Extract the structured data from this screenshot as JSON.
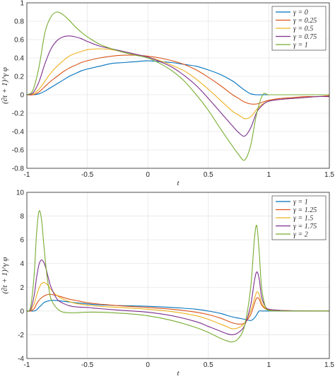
{
  "chart_data": [
    {
      "type": "line",
      "xlabel": "t",
      "ylabel": "(∂t + 1)^γ φ",
      "xlim": [
        -1,
        1.5
      ],
      "ylim": [
        -0.8,
        1
      ],
      "xticks": [
        "-1",
        "-0.5",
        "0",
        "0.5",
        "1",
        "1.5"
      ],
      "yticks": [
        "1",
        "0.8",
        "0.6",
        "0.4",
        "0.2",
        "0",
        "-0.2",
        "-0.4",
        "-0.6",
        "-0.8"
      ],
      "grid": true,
      "legend_position": "top-right",
      "x": [
        -1.0,
        -0.95,
        -0.9,
        -0.85,
        -0.8,
        -0.75,
        -0.7,
        -0.65,
        -0.6,
        -0.55,
        -0.5,
        -0.4,
        -0.3,
        -0.2,
        -0.1,
        0.0,
        0.1,
        0.2,
        0.3,
        0.4,
        0.5,
        0.6,
        0.7,
        0.75,
        0.8,
        0.85,
        0.9,
        0.95,
        1.0,
        1.1,
        1.2,
        1.3,
        1.4,
        1.5
      ],
      "series": [
        {
          "name": "γ = 0",
          "color": "#0072BD",
          "values": [
            0.0,
            0.0,
            0.01,
            0.04,
            0.08,
            0.12,
            0.16,
            0.2,
            0.23,
            0.26,
            0.28,
            0.31,
            0.34,
            0.35,
            0.36,
            0.37,
            0.36,
            0.35,
            0.33,
            0.31,
            0.27,
            0.22,
            0.15,
            0.1,
            0.05,
            0.01,
            0.0,
            0.0,
            0.0,
            0.0,
            0.0,
            0.0,
            0.0,
            0.0
          ]
        },
        {
          "name": "γ = 0.25",
          "color": "#D95319",
          "values": [
            0.0,
            0.0,
            0.03,
            0.09,
            0.15,
            0.2,
            0.25,
            0.29,
            0.32,
            0.35,
            0.37,
            0.4,
            0.42,
            0.43,
            0.43,
            0.42,
            0.4,
            0.37,
            0.33,
            0.27,
            0.19,
            0.1,
            0.0,
            -0.04,
            -0.08,
            -0.1,
            -0.1,
            -0.08,
            -0.06,
            -0.04,
            -0.03,
            -0.02,
            -0.02,
            -0.01
          ]
        },
        {
          "name": "γ = 0.5",
          "color": "#EDB120",
          "values": [
            0.0,
            0.01,
            0.06,
            0.15,
            0.24,
            0.31,
            0.37,
            0.42,
            0.45,
            0.47,
            0.49,
            0.5,
            0.49,
            0.47,
            0.44,
            0.41,
            0.37,
            0.32,
            0.26,
            0.17,
            0.06,
            -0.06,
            -0.18,
            -0.22,
            -0.26,
            -0.24,
            -0.16,
            -0.1,
            -0.07,
            -0.05,
            -0.04,
            -0.03,
            -0.02,
            -0.02
          ]
        },
        {
          "name": "γ = 0.75",
          "color": "#7E2F8E",
          "values": [
            0.0,
            0.02,
            0.14,
            0.34,
            0.5,
            0.59,
            0.63,
            0.64,
            0.63,
            0.61,
            0.58,
            0.53,
            0.5,
            0.47,
            0.44,
            0.41,
            0.36,
            0.3,
            0.21,
            0.1,
            -0.04,
            -0.19,
            -0.34,
            -0.41,
            -0.45,
            -0.36,
            -0.19,
            -0.11,
            -0.07,
            -0.05,
            -0.04,
            -0.03,
            -0.02,
            -0.02
          ]
        },
        {
          "name": "γ = 1",
          "color": "#77AC30",
          "values": [
            0.0,
            0.05,
            0.3,
            0.68,
            0.85,
            0.9,
            0.87,
            0.81,
            0.74,
            0.68,
            0.63,
            0.55,
            0.5,
            0.46,
            0.43,
            0.4,
            0.34,
            0.26,
            0.15,
            0.0,
            -0.17,
            -0.37,
            -0.56,
            -0.65,
            -0.71,
            -0.55,
            -0.2,
            0.0,
            0.0,
            0.0,
            0.0,
            0.0,
            0.0,
            0.0
          ]
        }
      ]
    },
    {
      "type": "line",
      "xlabel": "t",
      "ylabel": "(∂t + 1)^γ φ",
      "xlim": [
        -1,
        1.5
      ],
      "ylim": [
        -4,
        10
      ],
      "xticks": [
        "-1",
        "-0.5",
        "0",
        "0.5",
        "1",
        "1.5"
      ],
      "yticks": [
        "10",
        "8",
        "6",
        "4",
        "2",
        "0",
        "-2",
        "-4"
      ],
      "grid": true,
      "legend_position": "top-right",
      "x": [
        -1.0,
        -0.97,
        -0.94,
        -0.92,
        -0.9,
        -0.88,
        -0.86,
        -0.84,
        -0.82,
        -0.8,
        -0.75,
        -0.7,
        -0.65,
        -0.6,
        -0.5,
        -0.4,
        -0.2,
        0.0,
        0.2,
        0.4,
        0.5,
        0.6,
        0.65,
        0.7,
        0.75,
        0.8,
        0.85,
        0.88,
        0.9,
        0.92,
        0.94,
        0.97,
        1.0,
        1.1,
        1.2,
        1.3,
        1.4,
        1.5
      ],
      "series": [
        {
          "name": "γ = 1",
          "color": "#0072BD",
          "values": [
            0.0,
            0.0,
            0.0,
            0.1,
            0.3,
            0.5,
            0.7,
            0.8,
            0.85,
            0.9,
            0.88,
            0.82,
            0.76,
            0.7,
            0.6,
            0.52,
            0.45,
            0.4,
            0.3,
            0.15,
            0.0,
            -0.2,
            -0.35,
            -0.5,
            -0.6,
            -0.7,
            -0.8,
            -0.6,
            -0.3,
            0.0,
            0.0,
            0.0,
            0.0,
            0.0,
            0.0,
            0.0,
            0.0,
            0.0
          ]
        },
        {
          "name": "γ = 1.25",
          "color": "#D95319",
          "values": [
            0.0,
            0.0,
            0.2,
            0.6,
            0.9,
            1.1,
            1.25,
            1.35,
            1.4,
            1.4,
            1.3,
            1.15,
            1.0,
            0.9,
            0.7,
            0.58,
            0.42,
            0.3,
            0.15,
            -0.1,
            -0.3,
            -0.6,
            -0.8,
            -1.0,
            -1.1,
            -1.0,
            -0.3,
            0.6,
            1.1,
            1.0,
            0.5,
            0.2,
            0.1,
            0.05,
            0.02,
            0.01,
            0.0,
            0.0
          ]
        },
        {
          "name": "γ = 1.5",
          "color": "#EDB120",
          "values": [
            0.0,
            0.05,
            0.6,
            1.3,
            1.9,
            2.3,
            2.4,
            2.3,
            2.1,
            1.8,
            1.3,
            1.0,
            0.8,
            0.65,
            0.5,
            0.4,
            0.28,
            0.15,
            -0.05,
            -0.4,
            -0.7,
            -1.1,
            -1.3,
            -1.5,
            -1.4,
            -1.0,
            0.0,
            1.0,
            1.6,
            1.4,
            0.7,
            0.25,
            0.12,
            0.05,
            0.02,
            0.01,
            0.0,
            0.0
          ]
        },
        {
          "name": "γ = 1.75",
          "color": "#7E2F8E",
          "values": [
            0.0,
            0.1,
            1.3,
            2.8,
            3.9,
            4.3,
            4.1,
            3.5,
            2.7,
            2.0,
            1.0,
            0.65,
            0.45,
            0.35,
            0.3,
            0.2,
            0.05,
            -0.1,
            -0.4,
            -0.9,
            -1.3,
            -1.7,
            -1.9,
            -2.0,
            -1.8,
            -1.2,
            0.5,
            2.5,
            3.3,
            2.7,
            1.2,
            0.4,
            0.15,
            0.05,
            0.02,
            0.01,
            0.0,
            0.0
          ]
        },
        {
          "name": "γ = 2",
          "color": "#77AC30",
          "values": [
            0.0,
            0.3,
            3.0,
            6.5,
            8.4,
            7.8,
            5.6,
            3.5,
            2.0,
            1.0,
            0.2,
            -0.1,
            -0.15,
            -0.15,
            -0.1,
            -0.1,
            -0.2,
            -0.4,
            -0.8,
            -1.4,
            -1.8,
            -2.3,
            -2.5,
            -2.6,
            -2.3,
            -1.2,
            2.0,
            6.0,
            7.2,
            5.0,
            2.0,
            0.4,
            0.05,
            0.0,
            0.0,
            0.0,
            0.0,
            0.0
          ]
        }
      ]
    }
  ]
}
